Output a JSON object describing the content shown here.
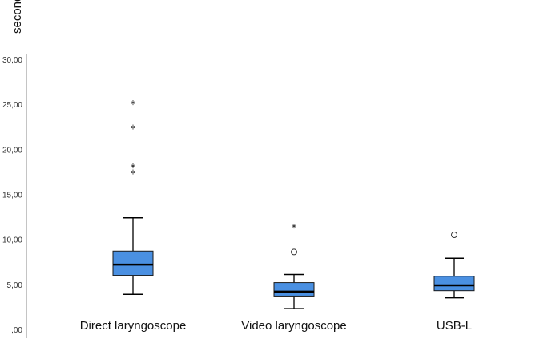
{
  "chart_data": {
    "type": "boxplot",
    "ylabel": "seconds",
    "xlabel": "",
    "ylim": [
      0,
      30
    ],
    "y_ticks": [
      0,
      5,
      10,
      15,
      20,
      25,
      30
    ],
    "y_tick_labels": [
      ",00",
      "5,00",
      "10,00",
      "15,00",
      "20,00",
      "25,00",
      "30,00"
    ],
    "grid": false,
    "box_color": "#4a90e2",
    "categories": [
      "Direct laryngoscope",
      "Video laryngoscope",
      "USB-L"
    ],
    "boxes": [
      {
        "category": "Direct laryngoscope",
        "whisker_low": 3.9,
        "q1": 6.0,
        "median": 7.2,
        "q3": 8.7,
        "whisker_high": 12.4,
        "outliers": [],
        "extremes": [
          17.3,
          18.0,
          22.3,
          25.0
        ]
      },
      {
        "category": "Video laryngoscope",
        "whisker_low": 2.3,
        "q1": 3.7,
        "median": 4.2,
        "q3": 5.2,
        "whisker_high": 6.1,
        "outliers": [
          8.6
        ],
        "extremes": [
          11.3
        ]
      },
      {
        "category": "USB-L",
        "whisker_low": 3.5,
        "q1": 4.3,
        "median": 4.9,
        "q3": 5.9,
        "whisker_high": 7.9,
        "outliers": [
          10.5
        ],
        "extremes": []
      }
    ]
  }
}
